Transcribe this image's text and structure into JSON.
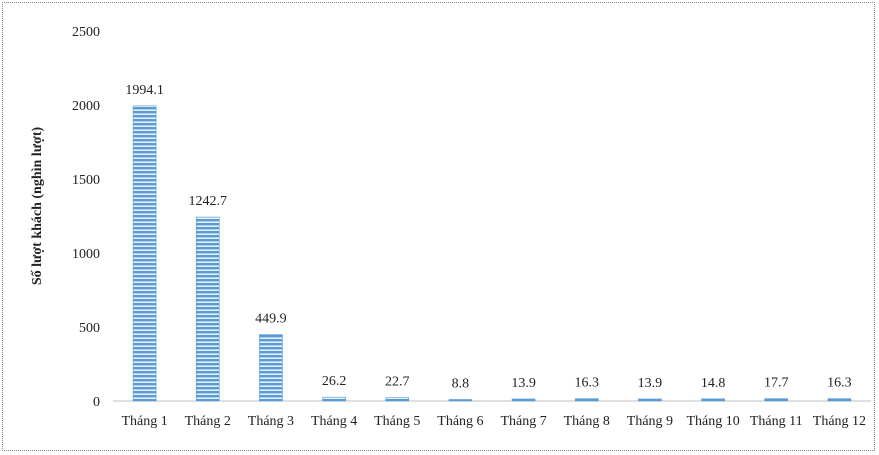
{
  "chart_data": {
    "type": "bar",
    "categories": [
      "Tháng 1",
      "Tháng 2",
      "Tháng 3",
      "Tháng 4",
      "Tháng 5",
      "Tháng 6",
      "Tháng 7",
      "Tháng 8",
      "Tháng 9",
      "Tháng 10",
      "Tháng 11",
      "Tháng 12"
    ],
    "values": [
      1994.1,
      1242.7,
      449.9,
      26.2,
      22.7,
      8.8,
      13.9,
      16.3,
      13.9,
      14.8,
      17.7,
      16.3
    ],
    "data_labels": [
      "1994.1",
      "1242.7",
      "449.9",
      "26.2",
      "22.7",
      "8.8",
      "13.9",
      "16.3",
      "13.9",
      "14.8",
      "17.7",
      "16.3"
    ],
    "title": "",
    "xlabel": "",
    "ylabel": "Số lượt khách (nghìn lượt)",
    "ylim": [
      0,
      2500
    ],
    "yticks": [
      0,
      500,
      1000,
      1500,
      2000,
      2500
    ],
    "grid": false,
    "legend": "none",
    "bar_color": "#5b9bd5",
    "bar_stripe_color": "#ffffff"
  }
}
